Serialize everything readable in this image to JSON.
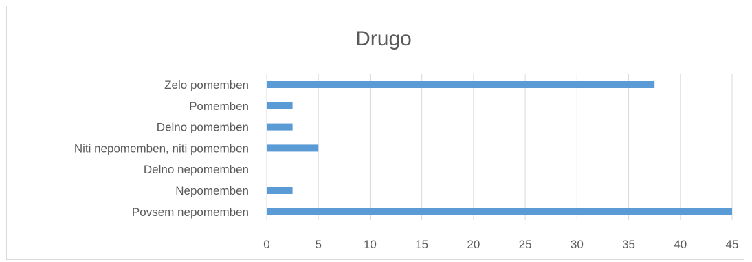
{
  "chart_data": {
    "type": "bar",
    "orientation": "horizontal",
    "title": "Drugo",
    "xlabel": "",
    "ylabel": "",
    "categories": [
      "Zelo pomemben",
      "Pomemben",
      "Delno pomemben",
      "Niti nepomemben, niti pomemben",
      "Delno nepomemben",
      "Nepomemben",
      "Povsem nepomemben"
    ],
    "values": [
      37.5,
      2.5,
      2.5,
      5,
      0,
      2.5,
      45
    ],
    "xlim": [
      0,
      45
    ],
    "xticks": [
      "0",
      "5",
      "10",
      "15",
      "20",
      "25",
      "30",
      "35",
      "40",
      "45"
    ],
    "grid": true,
    "legend": false,
    "bar_color": "#5b9bd5",
    "grid_color": "#d9d9d9",
    "text_color": "#595959"
  }
}
